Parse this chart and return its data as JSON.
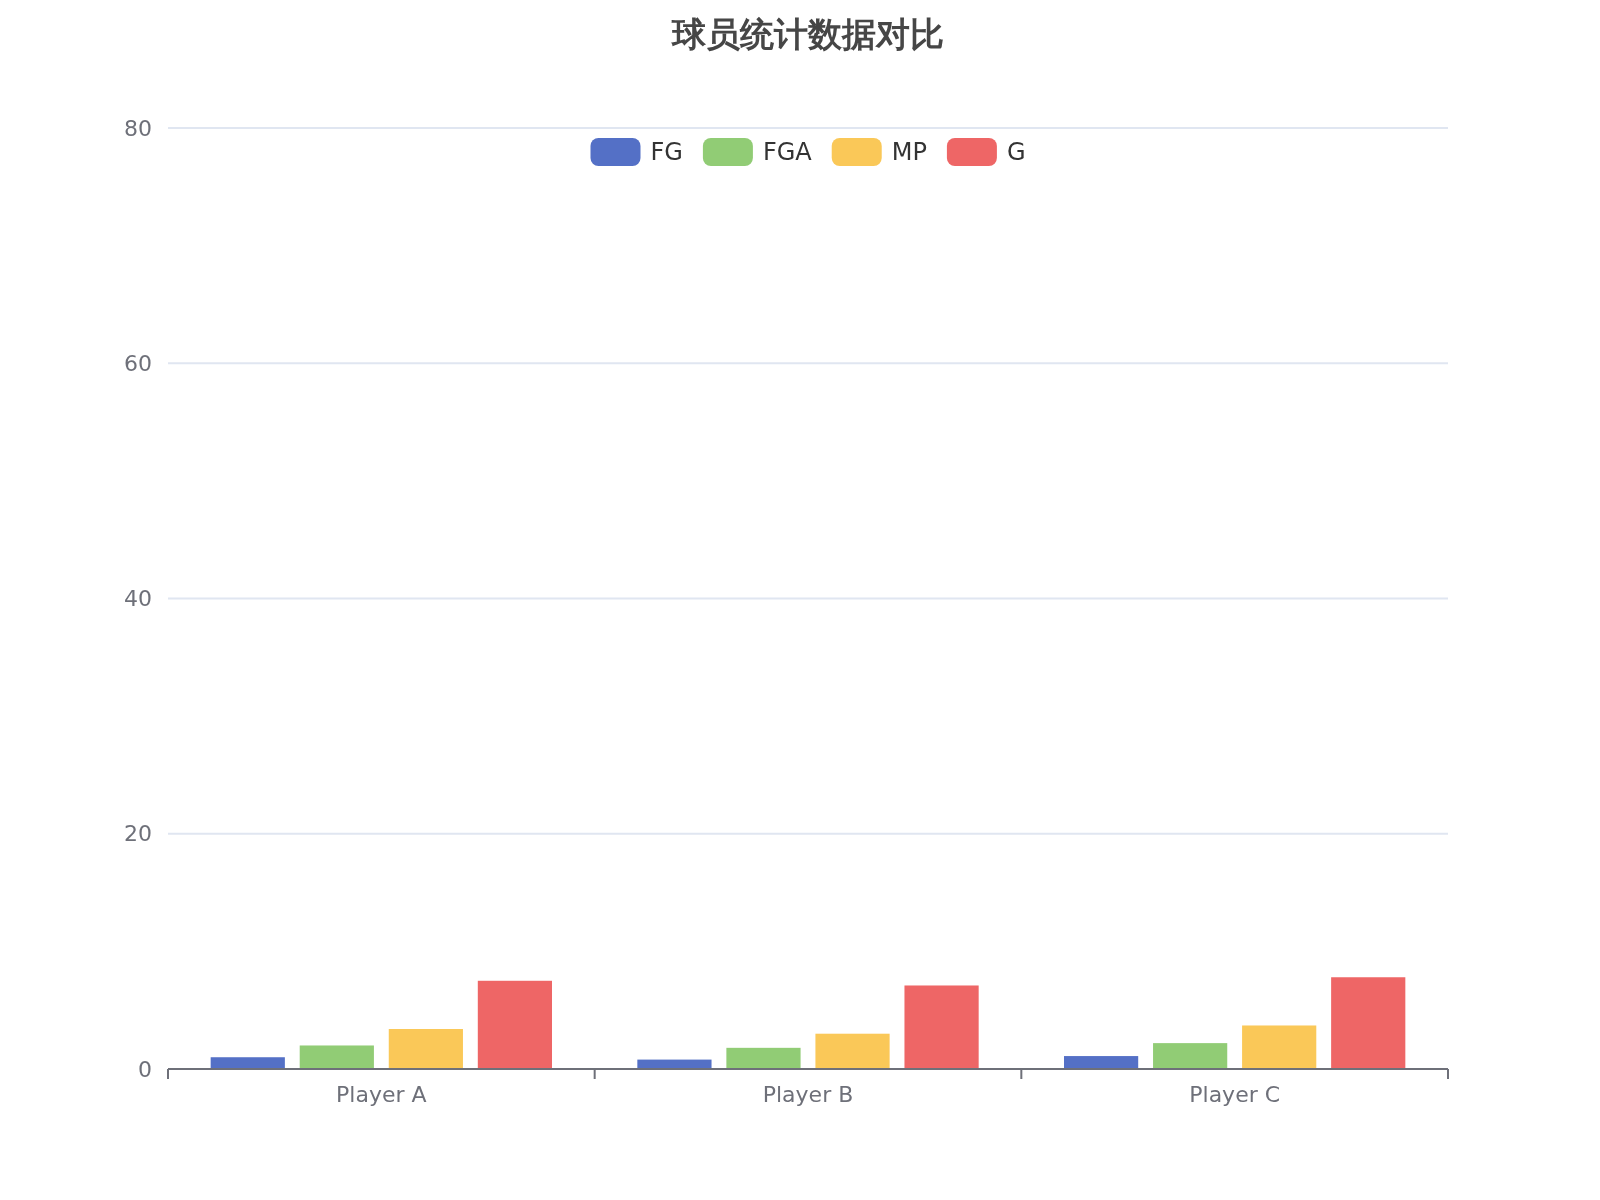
{
  "chart_data": {
    "type": "bar",
    "title": "球员统计数据对比",
    "categories": [
      "Player A",
      "Player B",
      "Player C"
    ],
    "series": [
      {
        "name": "FG",
        "color": "#5470c6",
        "values": [
          1.0,
          0.8,
          1.1
        ]
      },
      {
        "name": "FGA",
        "color": "#91cc75",
        "values": [
          2.0,
          1.8,
          2.2
        ]
      },
      {
        "name": "MP",
        "color": "#fac858",
        "values": [
          3.4,
          3.0,
          3.7
        ]
      },
      {
        "name": "G",
        "color": "#ee6666",
        "values": [
          7.5,
          7.1,
          7.8
        ]
      }
    ],
    "ylim": [
      0,
      80
    ],
    "yticks": [
      0,
      20,
      40,
      60,
      80
    ],
    "grid": "y",
    "legend": "top"
  }
}
